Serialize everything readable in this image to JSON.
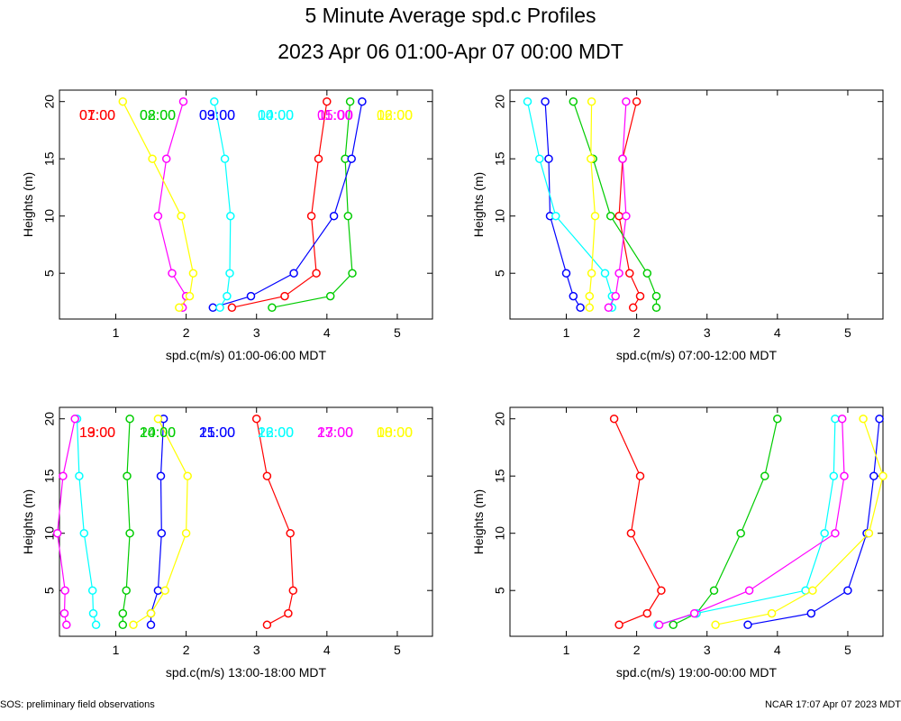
{
  "title": "5 Minute Average spd.c Profiles",
  "subtitle": "2023 Apr 06 01:00-Apr 07 00:00 MDT",
  "footer": {
    "left": "SOS: preliminary field observations",
    "right": "NCAR 17:07 Apr 07 2023 MDT"
  },
  "colors": [
    "#ff0000",
    "#00cc00",
    "#0000ff",
    "#00ffff",
    "#ff00ff",
    "#ffff00"
  ],
  "chart_data": [
    {
      "type": "line",
      "xlabel": "spd.c(m/s) 01:00-06:00 MDT",
      "ylabel": "Heights (m)",
      "xlim": [
        0.2,
        5.5
      ],
      "ylim": [
        1,
        21
      ],
      "xticks": [
        "1",
        "2",
        "3",
        "4",
        "5"
      ],
      "yticks": [
        "5",
        "10",
        "15",
        "20"
      ],
      "heights": [
        2,
        3,
        5,
        10,
        15,
        20
      ],
      "series": [
        {
          "name": "01:00",
          "values": [
            2.65,
            3.4,
            3.85,
            3.78,
            3.88,
            4.0
          ]
        },
        {
          "name": "02:00",
          "values": [
            3.22,
            4.05,
            4.36,
            4.3,
            4.26,
            4.33
          ]
        },
        {
          "name": "03:00",
          "values": [
            2.38,
            2.92,
            3.53,
            4.1,
            4.35,
            4.5
          ]
        },
        {
          "name": "04:00",
          "values": [
            2.48,
            2.58,
            2.62,
            2.63,
            2.55,
            2.4
          ]
        },
        {
          "name": "05:00",
          "values": [
            1.95,
            2.0,
            1.8,
            1.6,
            1.72,
            1.96
          ]
        },
        {
          "name": "06:00",
          "values": [
            1.9,
            2.05,
            2.1,
            1.93,
            1.52,
            1.1
          ]
        }
      ]
    },
    {
      "type": "line",
      "xlabel": "spd.c(m/s) 07:00-12:00 MDT",
      "ylabel": "Heights (m)",
      "xlim": [
        0.2,
        5.5
      ],
      "ylim": [
        1,
        21
      ],
      "xticks": [
        "1",
        "2",
        "3",
        "4",
        "5"
      ],
      "yticks": [
        "5",
        "10",
        "15",
        "20"
      ],
      "heights": [
        2,
        3,
        5,
        10,
        15,
        20
      ],
      "series": [
        {
          "name": "07:00",
          "values": [
            1.95,
            2.05,
            1.9,
            1.75,
            1.8,
            2.0
          ]
        },
        {
          "name": "08:00",
          "values": [
            2.28,
            2.28,
            2.15,
            1.63,
            1.38,
            1.1
          ]
        },
        {
          "name": "09:00",
          "values": [
            1.2,
            1.1,
            1.0,
            0.77,
            0.75,
            0.7
          ]
        },
        {
          "name": "10:00",
          "values": [
            1.65,
            1.65,
            1.55,
            0.85,
            0.62,
            0.45
          ]
        },
        {
          "name": "11:00",
          "values": [
            1.6,
            1.7,
            1.75,
            1.85,
            1.8,
            1.85
          ]
        },
        {
          "name": "12:00",
          "values": [
            1.33,
            1.33,
            1.36,
            1.41,
            1.35,
            1.36
          ]
        }
      ]
    },
    {
      "type": "line",
      "xlabel": "spd.c(m/s) 13:00-18:00 MDT",
      "ylabel": "Heights (m)",
      "xlim": [
        0.2,
        5.5
      ],
      "ylim": [
        1,
        21
      ],
      "xticks": [
        "1",
        "2",
        "3",
        "4",
        "5"
      ],
      "yticks": [
        "5",
        "10",
        "15",
        "20"
      ],
      "heights": [
        2,
        3,
        5,
        10,
        15,
        20
      ],
      "series": [
        {
          "name": "13:00",
          "values": [
            3.15,
            3.45,
            3.52,
            3.48,
            3.15,
            3.0
          ]
        },
        {
          "name": "14:00",
          "values": [
            1.1,
            1.1,
            1.15,
            1.2,
            1.16,
            1.2
          ]
        },
        {
          "name": "15:00",
          "values": [
            1.5,
            1.5,
            1.6,
            1.65,
            1.64,
            1.68
          ]
        },
        {
          "name": "16:00",
          "values": [
            0.72,
            0.68,
            0.67,
            0.55,
            0.48,
            0.45
          ]
        },
        {
          "name": "17:00",
          "values": [
            0.3,
            0.27,
            0.28,
            0.17,
            0.25,
            0.42
          ]
        },
        {
          "name": "18:00",
          "values": [
            1.25,
            1.5,
            1.7,
            2.0,
            2.02,
            1.6
          ]
        }
      ]
    },
    {
      "type": "line",
      "xlabel": "spd.c(m/s) 19:00-00:00 MDT",
      "ylabel": "Heights (m)",
      "xlim": [
        0.2,
        5.5
      ],
      "ylim": [
        1,
        21
      ],
      "xticks": [
        "1",
        "2",
        "3",
        "4",
        "5"
      ],
      "yticks": [
        "5",
        "10",
        "15",
        "20"
      ],
      "heights": [
        2,
        3,
        5,
        10,
        15,
        20
      ],
      "series": [
        {
          "name": "19:00",
          "values": [
            1.75,
            2.15,
            2.35,
            1.92,
            2.05,
            1.68
          ]
        },
        {
          "name": "20:00",
          "values": [
            2.52,
            2.85,
            3.1,
            3.48,
            3.82,
            4.0
          ]
        },
        {
          "name": "21:00",
          "values": [
            3.58,
            4.48,
            5.0,
            5.27,
            5.37,
            5.45
          ]
        },
        {
          "name": "22:00",
          "values": [
            2.3,
            2.85,
            4.4,
            4.67,
            4.8,
            4.82
          ]
        },
        {
          "name": "23:00",
          "values": [
            2.32,
            2.82,
            3.6,
            4.82,
            4.95,
            4.92
          ]
        },
        {
          "name": "00:00",
          "values": [
            3.12,
            3.92,
            4.5,
            5.3,
            5.5,
            5.22
          ]
        }
      ]
    }
  ]
}
